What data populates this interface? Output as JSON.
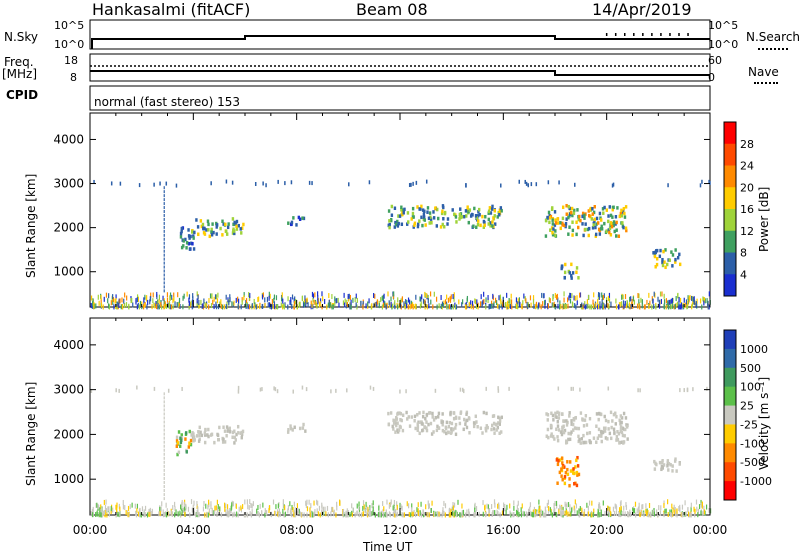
{
  "header": {
    "station": "Hankasalmi (fitACF)",
    "beam": "Beam 08",
    "date": "14/Apr/2019"
  },
  "top_panels": {
    "nsky_label": "N.Sky",
    "nsky_ticks": [
      "10^5",
      "10^0"
    ],
    "nsearch_label": "N.Search",
    "nsearch_ticks": [
      "10^5",
      "10^0"
    ],
    "freq_label_line1": "Freq.",
    "freq_label_line2": "[MHz]",
    "freq_ticks": [
      "18",
      "8"
    ],
    "nave_label": "Nave",
    "nave_ticks": [
      "60",
      "0"
    ],
    "cpid_label": "CPID",
    "cpid_text": "normal (fast stereo) 153"
  },
  "power_colorbar": {
    "label": "Power [dB]",
    "ticks": [
      "28",
      "24",
      "20",
      "16",
      "12",
      "8",
      "4"
    ],
    "colors": [
      "#ff0000",
      "#ff4a00",
      "#ff8a00",
      "#ffcc00",
      "#9fd33a",
      "#3fa060",
      "#2c5fa8",
      "#1a2fd0"
    ]
  },
  "velocity_colorbar": {
    "label": "Velocity [m s⁻¹]",
    "ticks": [
      "1000",
      "500",
      "100",
      "25",
      "-25",
      "-100",
      "-500",
      "-1000"
    ],
    "colors": [
      "#1f3fb8",
      "#2f6aa8",
      "#3f9a5e",
      "#5cc04a",
      "#c9c9c0",
      "#ffcc00",
      "#ff8a00",
      "#ff4a00",
      "#ff0000"
    ]
  },
  "chart_data": [
    {
      "type": "heatmap",
      "title": "Power",
      "ylabel": "Slant Range [km]",
      "yticks": [
        "4000",
        "3000",
        "2000",
        "1000"
      ],
      "ylim": [
        200,
        4600
      ],
      "xlim": [
        0,
        24
      ],
      "echo_regions": [
        {
          "t0": 3.9,
          "t1": 5.9,
          "r0": 1800,
          "r1": 2200,
          "level": "mid"
        },
        {
          "t0": 3.3,
          "t1": 4.0,
          "r0": 1500,
          "r1": 2000,
          "level": "low"
        },
        {
          "t0": 7.6,
          "t1": 8.3,
          "r0": 2050,
          "r1": 2250,
          "level": "low"
        },
        {
          "t0": 11.5,
          "t1": 15.9,
          "r0": 2000,
          "r1": 2500,
          "level": "mid"
        },
        {
          "t0": 17.6,
          "t1": 20.8,
          "r0": 1800,
          "r1": 2500,
          "level": "high"
        },
        {
          "t0": 18.2,
          "t1": 18.9,
          "r0": 850,
          "r1": 1200,
          "level": "mid"
        },
        {
          "t0": 21.7,
          "t1": 22.8,
          "r0": 1100,
          "r1": 1500,
          "level": "mid"
        },
        {
          "t0": 0,
          "t1": 24,
          "r0": 200,
          "r1": 500,
          "level": "noise"
        }
      ]
    },
    {
      "type": "heatmap",
      "title": "Velocity",
      "ylabel": "Slant Range [km]",
      "yticks": [
        "4000",
        "3000",
        "2000",
        "1000"
      ],
      "ylim": [
        200,
        4600
      ],
      "xlim": [
        0,
        24
      ],
      "xlabel": "Time UT",
      "xticks": [
        "00:00",
        "04:00",
        "08:00",
        "12:00",
        "16:00",
        "20:00",
        "00:00"
      ],
      "echo_regions": [
        {
          "t0": 3.9,
          "t1": 5.9,
          "r0": 1800,
          "r1": 2200,
          "level": "ground"
        },
        {
          "t0": 3.3,
          "t1": 3.9,
          "r0": 1500,
          "r1": 2100,
          "level": "mixed"
        },
        {
          "t0": 7.6,
          "t1": 8.3,
          "r0": 2050,
          "r1": 2250,
          "level": "ground"
        },
        {
          "t0": 11.5,
          "t1": 15.9,
          "r0": 2000,
          "r1": 2500,
          "level": "ground"
        },
        {
          "t0": 17.6,
          "t1": 20.8,
          "r0": 1800,
          "r1": 2500,
          "level": "ground"
        },
        {
          "t0": 18.0,
          "t1": 18.9,
          "r0": 850,
          "r1": 1500,
          "level": "neg"
        },
        {
          "t0": 21.7,
          "t1": 22.8,
          "r0": 1150,
          "r1": 1450,
          "level": "ground"
        },
        {
          "t0": 0,
          "t1": 24,
          "r0": 200,
          "r1": 500,
          "level": "noise"
        }
      ]
    }
  ]
}
